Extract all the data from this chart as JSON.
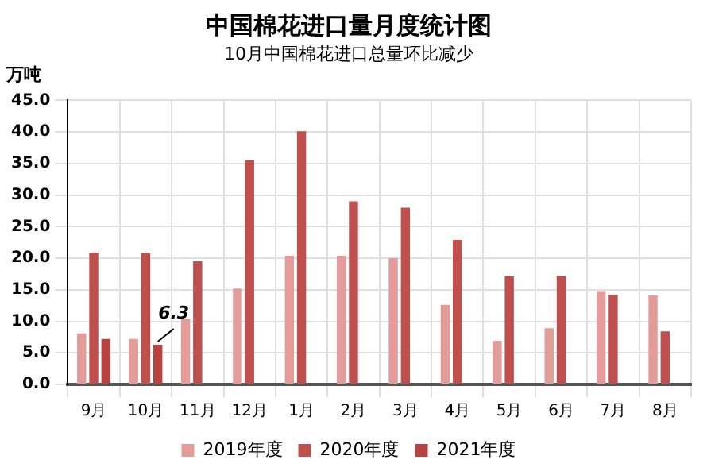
{
  "chart_data": {
    "type": "bar",
    "title": "中国棉花进口量月度统计图",
    "subtitle": "10月中国棉花进口总量环比减少",
    "ylabel": "万吨",
    "categories": [
      "9月",
      "10月",
      "11月",
      "12月",
      "1月",
      "2月",
      "3月",
      "4月",
      "5月",
      "6月",
      "7月",
      "8月"
    ],
    "series": [
      {
        "name": "2019年度",
        "color": "#e39c9a",
        "values": [
          8.1,
          7.2,
          10.4,
          15.2,
          20.4,
          20.4,
          20.0,
          12.6,
          6.9,
          8.9,
          14.8,
          14.1
        ]
      },
      {
        "name": "2020年度",
        "color": "#c0504d",
        "values": [
          20.9,
          20.8,
          19.5,
          35.5,
          40.1,
          29.0,
          28.0,
          22.9,
          17.1,
          17.1,
          14.2,
          8.4
        ]
      },
      {
        "name": "2021年度",
        "color": "#b8423f",
        "values": [
          7.2,
          6.3,
          null,
          null,
          null,
          null,
          null,
          null,
          null,
          null,
          null,
          null
        ]
      }
    ],
    "ylim": [
      0,
      45
    ],
    "yticks": [
      {
        "value": 0,
        "label": "0.0"
      },
      {
        "value": 5,
        "label": "5.0"
      },
      {
        "value": 10,
        "label": "10.0"
      },
      {
        "value": 15,
        "label": "15.0"
      },
      {
        "value": 20,
        "label": "20.0"
      },
      {
        "value": 25,
        "label": "25.0"
      },
      {
        "value": 30,
        "label": "30.0"
      },
      {
        "value": 35,
        "label": "35.0"
      },
      {
        "value": 40,
        "label": "40.0"
      },
      {
        "value": 45,
        "label": "45.0"
      }
    ],
    "annotations": [
      {
        "text": "6.3",
        "x": "10月",
        "y": 6.3
      }
    ],
    "grid": true,
    "legend": "bottom"
  }
}
